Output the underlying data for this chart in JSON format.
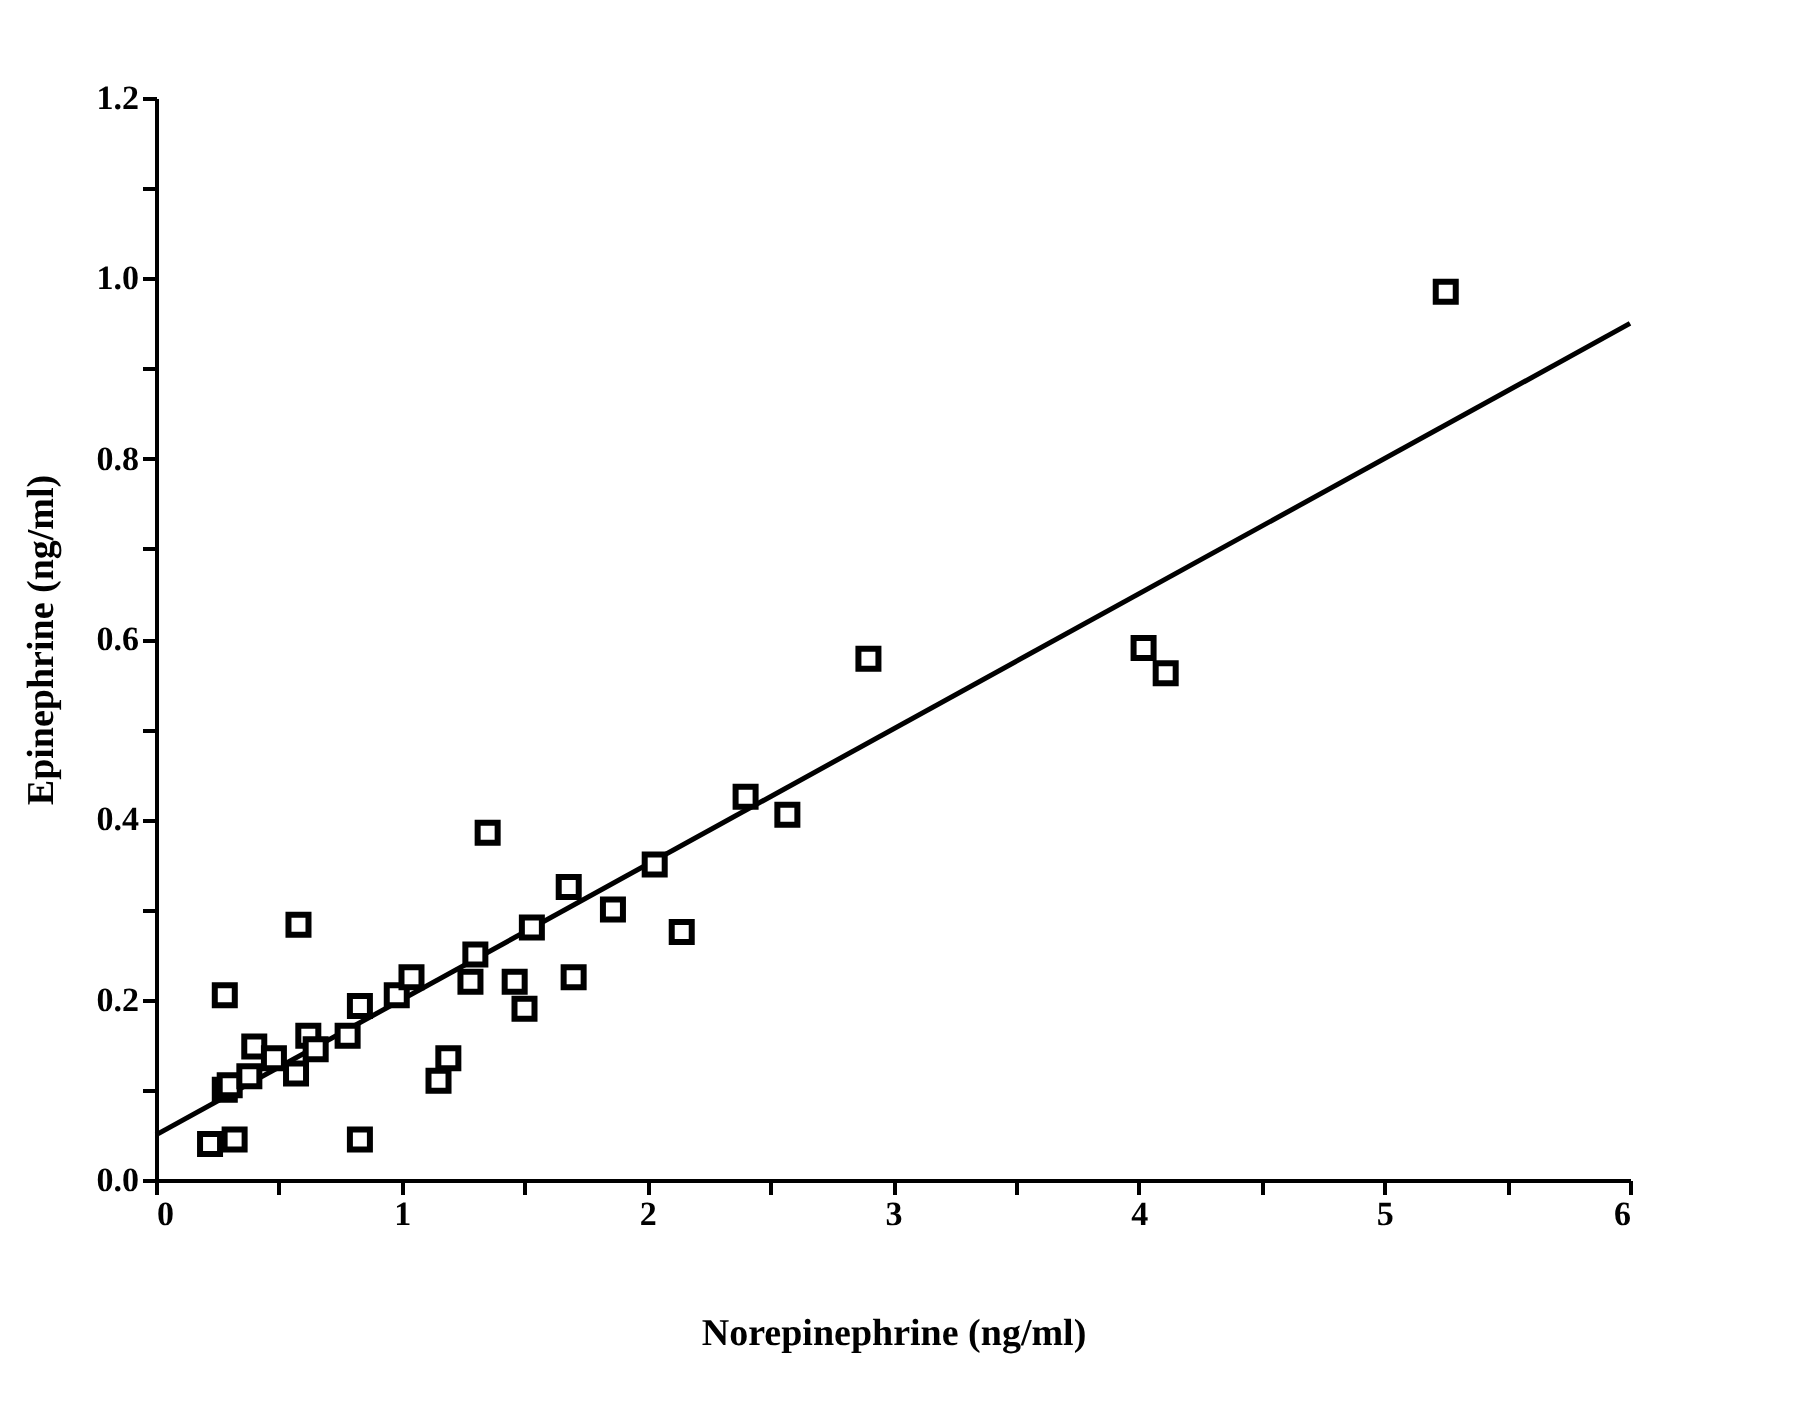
{
  "chart_data": {
    "type": "scatter",
    "xlabel": "Norepinephrine (ng/ml)",
    "ylabel": "Epinephrine (ng/ml)",
    "grid": false,
    "xlim": [
      0,
      6
    ],
    "ylim": [
      0,
      1.2
    ],
    "xticks": [
      0,
      {
        "value": 0.5,
        "label": null
      },
      1,
      {
        "value": 1.5,
        "label": null
      },
      2,
      {
        "value": 2.5,
        "label": null
      },
      3,
      {
        "value": 3.5,
        "label": null
      },
      4,
      {
        "value": 4.5,
        "label": null
      },
      5,
      {
        "value": 5.5,
        "label": null
      },
      6
    ],
    "yticks": [
      {
        "value": 0,
        "label": "0.0"
      },
      {
        "value": 0.1,
        "label": null
      },
      0.2,
      {
        "value": 0.3,
        "label": null
      },
      0.4,
      {
        "value": 0.5,
        "label": null
      },
      0.6,
      {
        "value": 0.7,
        "label": null
      },
      0.8,
      {
        "value": 0.9,
        "label": null
      },
      {
        "value": 1,
        "label": "1.0"
      },
      {
        "value": 1.1,
        "label": null
      },
      1.2
    ],
    "series": [
      {
        "color": "#000000",
        "marker": "square",
        "x": [
          0.22,
          0.32,
          0.28,
          0.3,
          0.28,
          0.38,
          0.4,
          0.48,
          0.57,
          0.58,
          0.62,
          0.65,
          0.78,
          0.83,
          0.83,
          0.98,
          1.04,
          1.15,
          1.19,
          1.28,
          1.3,
          1.35,
          1.46,
          1.5,
          1.53,
          1.68,
          1.7,
          1.86,
          2.03,
          2.14,
          2.4,
          2.57,
          2.9,
          4.02,
          4.11,
          5.25
        ],
        "values": [
          0.04,
          0.045,
          0.1,
          0.105,
          0.205,
          0.115,
          0.148,
          0.135,
          0.118,
          0.283,
          0.16,
          0.145,
          0.16,
          0.045,
          0.193,
          0.205,
          0.225,
          0.11,
          0.135,
          0.22,
          0.25,
          0.385,
          0.22,
          0.19,
          0.28,
          0.325,
          0.225,
          0.3,
          0.35,
          0.275,
          0.425,
          0.405,
          0.578,
          0.59,
          0.562,
          0.985
        ]
      },
      {
        "type": "line",
        "color": "#000000",
        "x": [
          0,
          6
        ],
        "values": [
          0.05,
          0.95
        ]
      }
    ]
  }
}
